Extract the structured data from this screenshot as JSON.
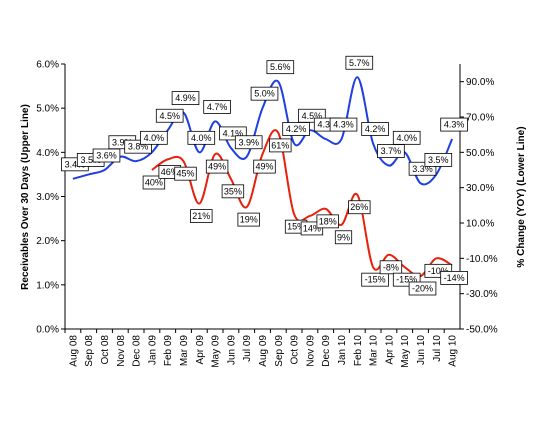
{
  "chart_data": {
    "type": "line",
    "y_label": "Receivables Over 30 Days (Upper Line)",
    "y2_label": "% Change (YOY) (Lower Line)",
    "categories": [
      "Aug 08",
      "Sep 08",
      "Oct 08",
      "Nov 08",
      "Dec 08",
      "Jan 09",
      "Feb 09",
      "Mar 09",
      "Apr 09",
      "May 09",
      "Jun 09",
      "Jul 09",
      "Aug 09",
      "Sep 09",
      "Oct 09",
      "Nov 09",
      "Dec 09",
      "Jan 10",
      "Feb 10",
      "Mar 10",
      "Apr 10",
      "May 10",
      "Jun 10",
      "Jul 10",
      "Aug 10"
    ],
    "series": [
      {
        "name": "Receivables Over 30 Days",
        "color": "#1f3fe0",
        "axis": "y",
        "values": [
          3.4,
          3.5,
          3.6,
          3.9,
          3.8,
          4.0,
          4.5,
          4.9,
          4.0,
          4.7,
          4.1,
          3.9,
          5.0,
          5.6,
          4.2,
          4.5,
          4.3,
          4.3,
          5.7,
          4.2,
          3.7,
          4.0,
          3.3,
          3.5,
          4.3
        ],
        "value_labels": [
          "3.4%",
          "3.5%",
          "3.6%",
          "3.9%",
          "3.8%",
          "4.0%",
          "4.5%",
          "4.9%",
          "4.0%",
          "4.7%",
          "4.1%",
          "3.9%",
          "5.0%",
          "5.6%",
          "4.2%",
          "4.5%",
          "4.3%",
          "4.3%",
          "5.7%",
          "4.2%",
          "3.7%",
          "4.0%",
          "3.3%",
          "3.5%",
          "4.3%"
        ]
      },
      {
        "name": "% Change (YOY)",
        "color": "#e8200c",
        "axis": "y2",
        "values": [
          null,
          null,
          null,
          null,
          null,
          40,
          46,
          45,
          21,
          49,
          35,
          19,
          49,
          61,
          15,
          14,
          18,
          9,
          26,
          -15,
          -8,
          -15,
          -20,
          -10,
          -14
        ],
        "value_labels": [
          null,
          null,
          null,
          null,
          null,
          "40%",
          "46%",
          "45%",
          "21%",
          "49%",
          "35%",
          "19%",
          "49%",
          "61%",
          "15%",
          "14%",
          "18%",
          "9%",
          "26%",
          "-15%",
          "-8%",
          "-15%",
          "-20%",
          "-10%",
          "-14%"
        ]
      }
    ],
    "ylim": [
      0,
      6
    ],
    "yticks": [
      {
        "value": 0,
        "label": "0.0%"
      },
      {
        "value": 1,
        "label": "1.0%"
      },
      {
        "value": 2,
        "label": "2.0%"
      },
      {
        "value": 3,
        "label": "3.0%"
      },
      {
        "value": 4,
        "label": "4.0%"
      },
      {
        "value": 5,
        "label": "5.0%"
      },
      {
        "value": 6,
        "label": "6.0%"
      }
    ],
    "y2lim": [
      -50,
      100
    ],
    "y2ticks": [
      {
        "value": -50,
        "label": "-50.0%"
      },
      {
        "value": -30,
        "label": "-30.0%"
      },
      {
        "value": -10,
        "label": "-10.0%"
      },
      {
        "value": 10,
        "label": "10.0%"
      },
      {
        "value": 30,
        "label": "30.0%"
      },
      {
        "value": 50,
        "label": "50.0%"
      },
      {
        "value": 70,
        "label": "70.0%"
      },
      {
        "value": 90,
        "label": "90.0%"
      }
    ]
  }
}
